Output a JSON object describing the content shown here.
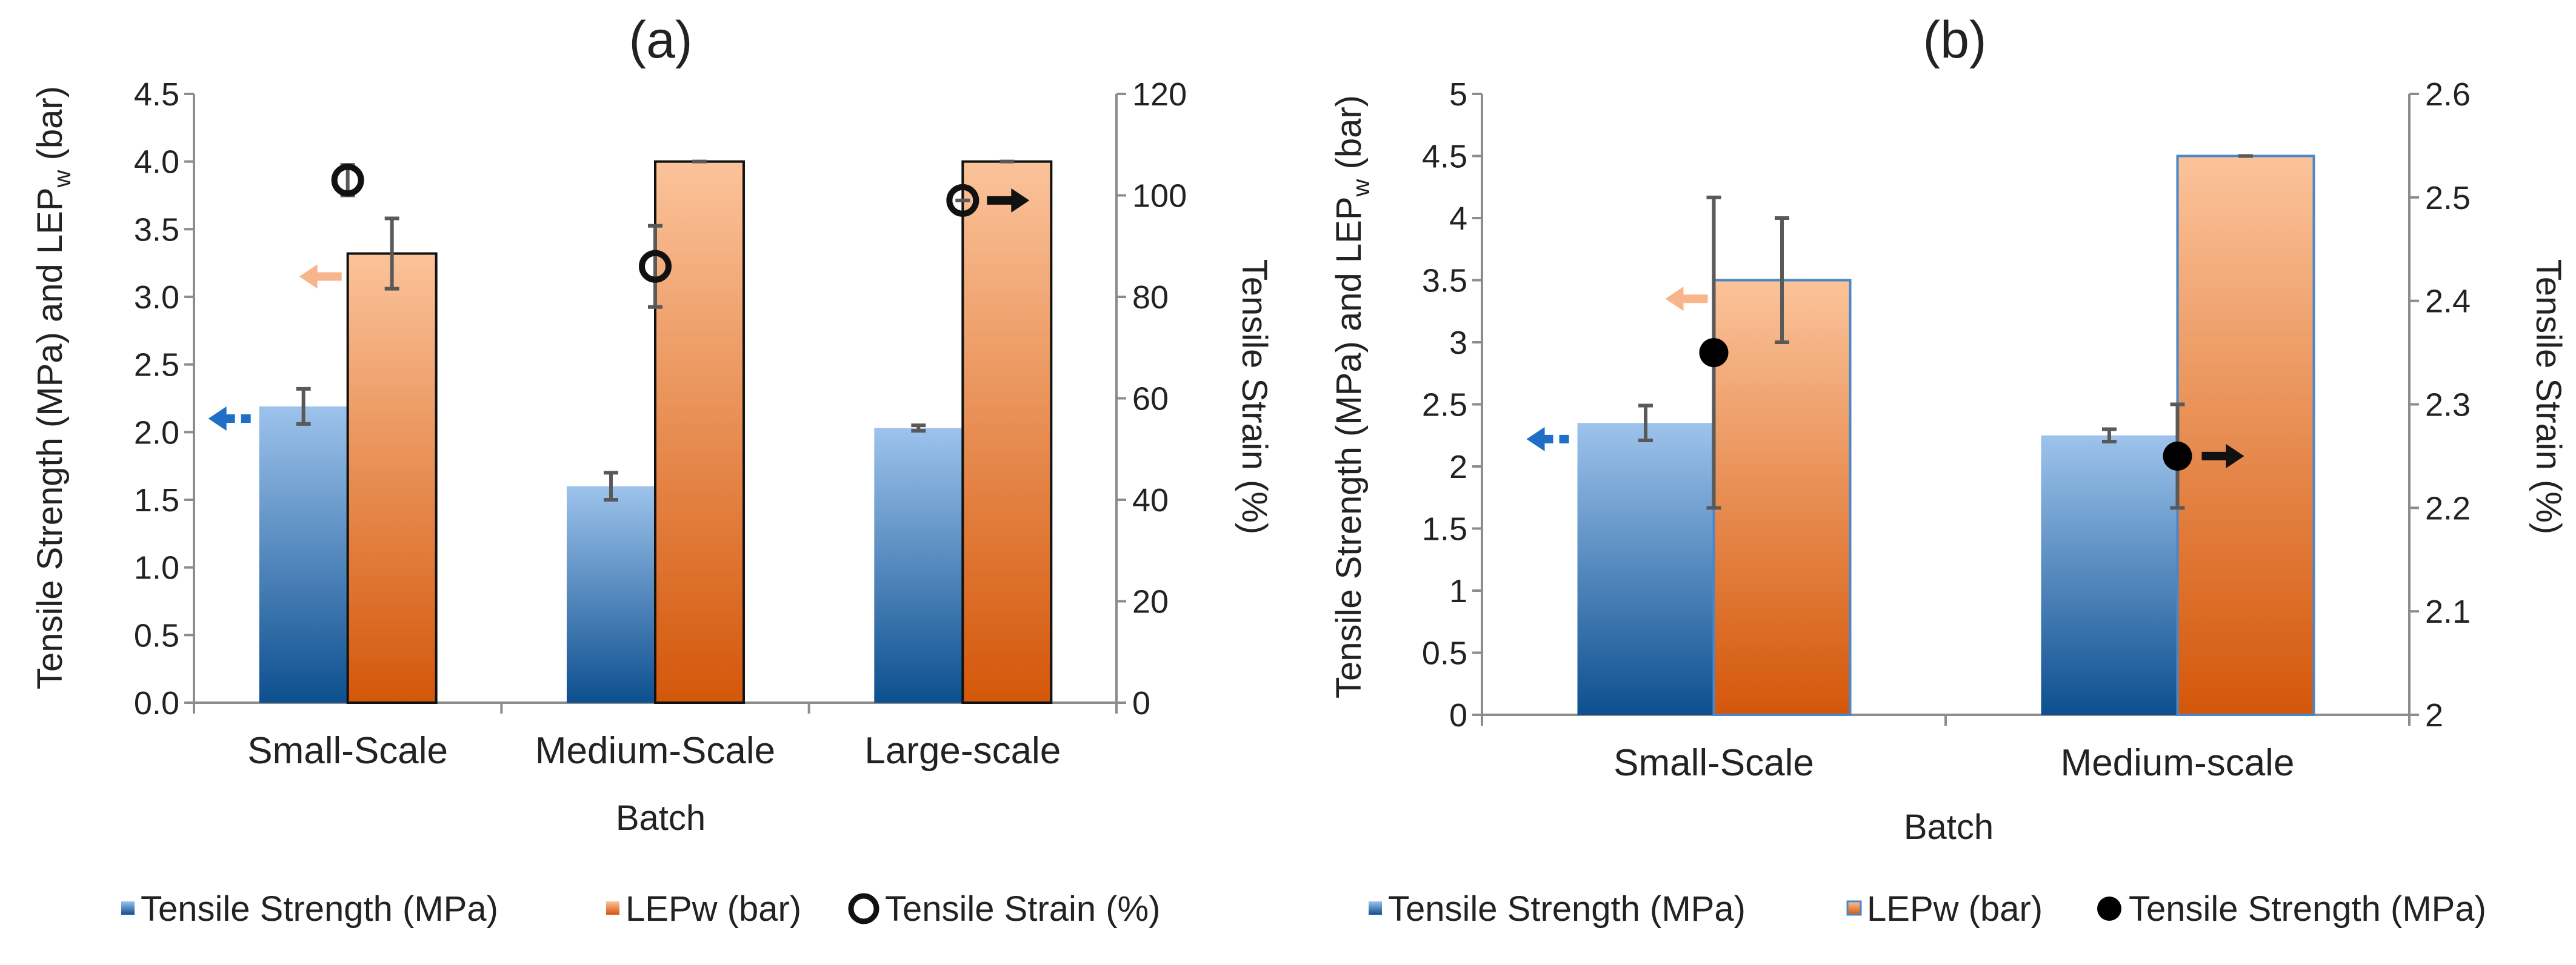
{
  "colors": {
    "blue_top": "#9dc3ec",
    "blue_bottom": "#0d4f8f",
    "orange_top": "#fbc39a",
    "orange_bottom": "#d4570a",
    "orange_arrow": "#f8b48a",
    "blue_arrow": "#1f6fc8",
    "bar_outline_b": "#4a86c8",
    "errorbar": "#595959",
    "axis": "#8c8c8c"
  },
  "chart_data": [
    {
      "panel": "a",
      "type": "bar",
      "title": "(a)",
      "xlabel": "Batch",
      "ylabel_left": "Tensile Strength (MPa) and LEP",
      "ylabel_left_sub": "w",
      "ylabel_left_tail": " (bar)",
      "ylabel_right": "Tensile Strain (%)",
      "categories": [
        "Small-Scale",
        "Medium-Scale",
        "Large-scale"
      ],
      "ylim_left": [
        0,
        4.5
      ],
      "yticks_left": [
        "0.0",
        "0.5",
        "1.0",
        "1.5",
        "2.0",
        "2.5",
        "3.0",
        "3.5",
        "4.0",
        "4.5"
      ],
      "ylim_right": [
        0,
        120
      ],
      "yticks_right": [
        "0",
        "20",
        "40",
        "60",
        "80",
        "100",
        "120"
      ],
      "series": [
        {
          "name": "Tensile Strength (MPa)",
          "axis": "left",
          "kind": "bar",
          "style": "blue",
          "values": [
            2.19,
            1.6,
            2.03
          ],
          "errors": [
            0.13,
            0.1,
            0.02
          ]
        },
        {
          "name": "LEPw (bar)",
          "axis": "left",
          "kind": "bar",
          "style": "orange",
          "values": [
            3.32,
            4.0,
            4.0
          ],
          "errors": [
            0.26,
            0.0,
            0.0
          ]
        },
        {
          "name": "Tensile Strain (%)",
          "axis": "right",
          "kind": "marker",
          "style": "open-circle",
          "values": [
            103,
            86,
            99
          ],
          "errors": [
            3,
            8,
            0
          ]
        }
      ],
      "legend": [
        "Tensile Strength (MPa)",
        "LEPw (bar)",
        "Tensile Strain (%)"
      ],
      "axis_arrows": [
        {
          "style": "blue-dashed",
          "direction": "left",
          "category": 0,
          "value": 2.1
        },
        {
          "style": "orange",
          "direction": "left",
          "category": 0,
          "value": 3.15
        },
        {
          "style": "black",
          "direction": "right",
          "category": 2,
          "value": 99,
          "axis": "right"
        }
      ]
    },
    {
      "panel": "b",
      "type": "bar",
      "title": "(b)",
      "xlabel": "Batch",
      "ylabel_left": "Tensile Strength (MPa) and LEP",
      "ylabel_left_sub": "w",
      "ylabel_left_tail": " (bar)",
      "ylabel_right": "Tensile Strain (%)",
      "categories": [
        "Small-Scale",
        "Medium-scale"
      ],
      "ylim_left": [
        0,
        5
      ],
      "yticks_left": [
        "0",
        "0.5",
        "1",
        "1.5",
        "2",
        "2.5",
        "3",
        "3.5",
        "4",
        "4.5",
        "5"
      ],
      "ylim_right": [
        2,
        2.6
      ],
      "yticks_right": [
        "2",
        "2.1",
        "2.2",
        "2.3",
        "2.4",
        "2.5",
        "2.6"
      ],
      "series": [
        {
          "name": "Tensile Strength (MPa)",
          "axis": "left",
          "kind": "bar",
          "style": "blue",
          "values": [
            2.35,
            2.25
          ],
          "errors": [
            0.14,
            0.05
          ]
        },
        {
          "name": "LEPw (bar)",
          "axis": "left",
          "kind": "bar",
          "style": "orange",
          "values": [
            3.5,
            4.5
          ],
          "errors": [
            0.5,
            0.0
          ]
        },
        {
          "name": "Tensile Strength (MPa)",
          "axis": "right",
          "kind": "marker",
          "style": "filled-circle",
          "values": [
            2.35,
            2.25
          ],
          "errors": [
            0.15,
            0.05
          ]
        }
      ],
      "legend": [
        "Tensile Strength (MPa)",
        "LEPw (bar)",
        "Tensile Strength (MPa)"
      ],
      "axis_arrows": [
        {
          "style": "blue-dashed",
          "direction": "left",
          "category": 0,
          "value": 2.22
        },
        {
          "style": "orange",
          "direction": "left",
          "category": 0,
          "value": 3.35
        },
        {
          "style": "black",
          "direction": "right",
          "category": 1,
          "value": 2.25,
          "axis": "right"
        }
      ]
    }
  ]
}
